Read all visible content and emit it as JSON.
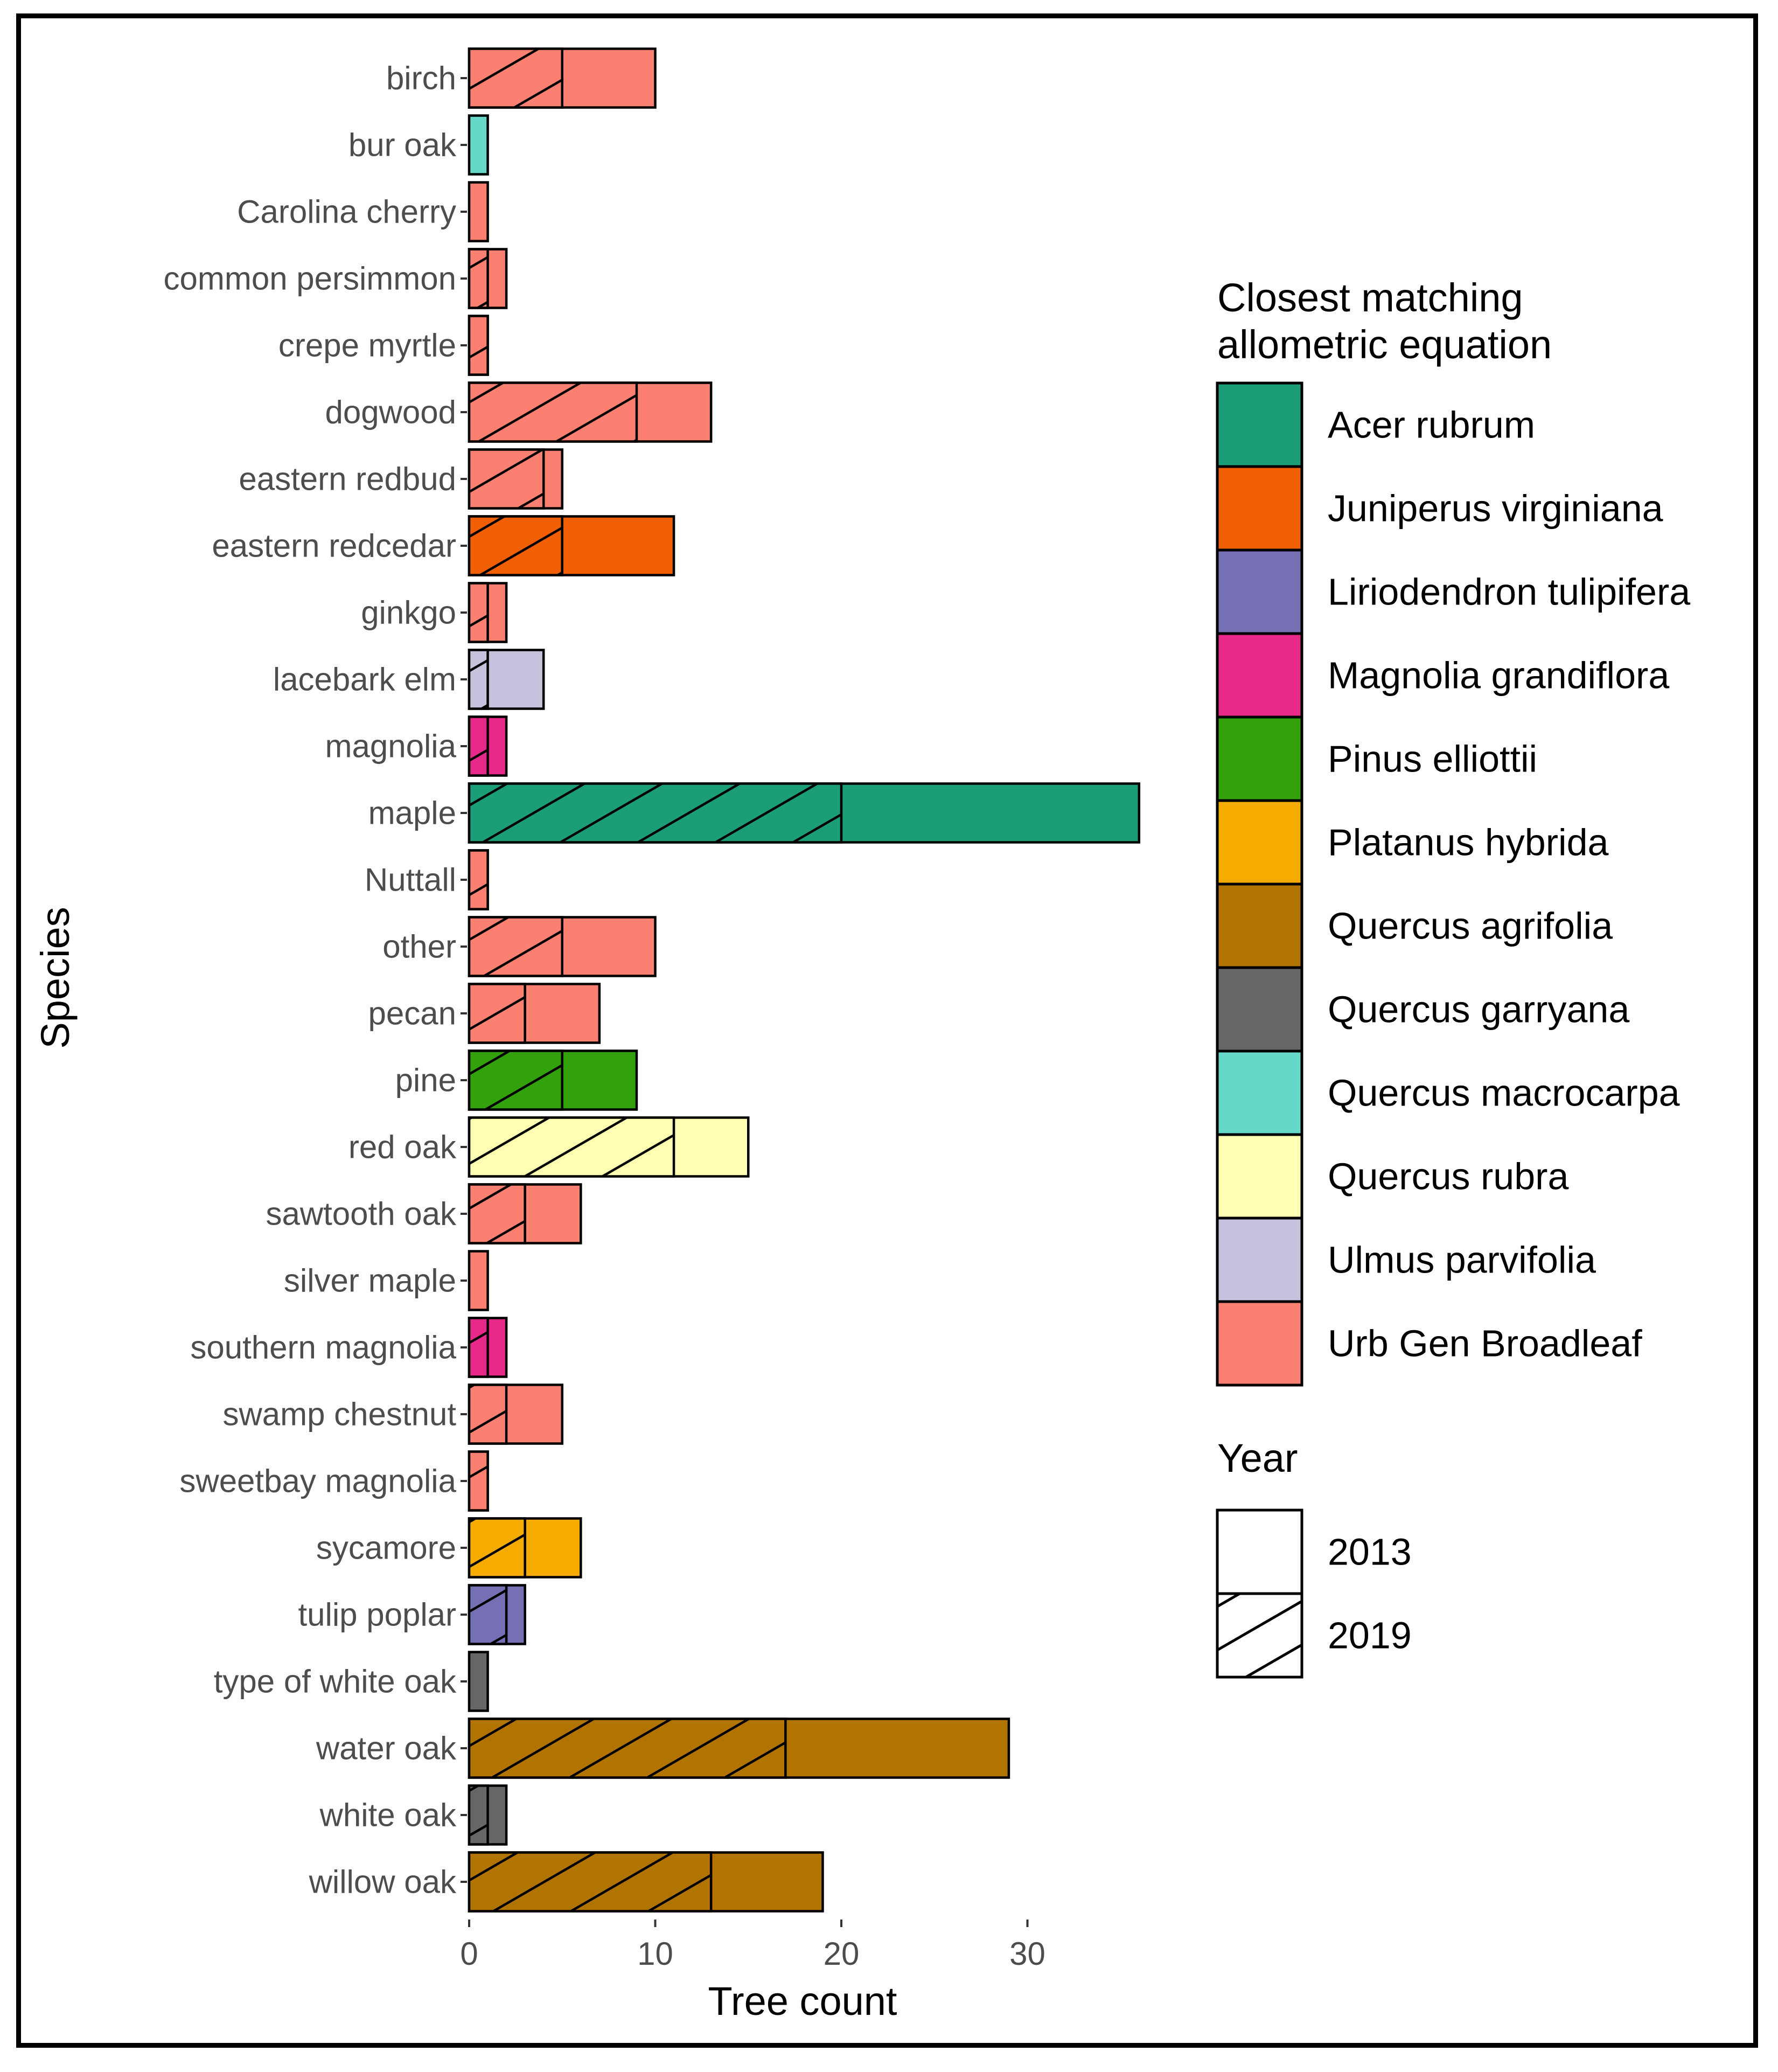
{
  "chart_data": {
    "type": "bar",
    "orientation": "horizontal",
    "stacking": "overlay",
    "xlabel": "Tree count",
    "ylabel": "Species",
    "xlim": [
      0,
      36
    ],
    "xticks": [
      0,
      10,
      20,
      30
    ],
    "grid": false,
    "legend_position": "right",
    "categories": [
      "birch",
      "bur oak",
      "Carolina cherry",
      "common persimmon",
      "crepe myrtle",
      "dogwood",
      "eastern redbud",
      "eastern redcedar",
      "ginkgo",
      "lacebark elm",
      "magnolia",
      "maple",
      "Nuttall",
      "other",
      "pecan",
      "pine",
      "red oak",
      "sawtooth oak",
      "silver maple",
      "southern magnolia",
      "swamp chestnut",
      "sweetbay magnolia",
      "sycamore",
      "tulip poplar",
      "type of white oak",
      "water oak",
      "white oak",
      "willow oak"
    ],
    "equation": [
      "Urb Gen Broadleaf",
      "Quercus macrocarpa",
      "Urb Gen Broadleaf",
      "Urb Gen Broadleaf",
      "Urb Gen Broadleaf",
      "Urb Gen Broadleaf",
      "Urb Gen Broadleaf",
      "Juniperus virginiana",
      "Urb Gen Broadleaf",
      "Ulmus parvifolia",
      "Magnolia grandiflora",
      "Acer rubrum",
      "Urb Gen Broadleaf",
      "Urb Gen Broadleaf",
      "Urb Gen Broadleaf",
      "Pinus elliottii",
      "Quercus rubra",
      "Urb Gen Broadleaf",
      "Urb Gen Broadleaf",
      "Magnolia grandiflora",
      "Urb Gen Broadleaf",
      "Urb Gen Broadleaf",
      "Platanus hybrida",
      "Liriodendron tulipifera",
      "Quercus garryana",
      "Quercus agrifolia",
      "Quercus garryana",
      "Quercus agrifolia"
    ],
    "series": [
      {
        "name": "2013",
        "values": [
          10,
          1,
          1,
          2,
          1,
          13,
          5,
          11,
          2,
          4,
          2,
          36,
          1,
          10,
          7,
          9,
          15,
          6,
          1,
          2,
          5,
          1,
          6,
          3,
          1,
          29,
          2,
          19
        ]
      },
      {
        "name": "2019",
        "values": [
          5,
          0,
          0,
          1,
          1,
          9,
          4,
          5,
          1,
          1,
          1,
          20,
          1,
          5,
          3,
          5,
          11,
          3,
          0,
          1,
          2,
          1,
          3,
          2,
          0,
          17,
          1,
          13
        ]
      }
    ],
    "legend_fill": {
      "title": "Closest matching allometric equation",
      "title_lines": [
        "Closest matching",
        "allometric equation"
      ],
      "entries": [
        {
          "label": "Acer rubrum",
          "color": "#1b9e77"
        },
        {
          "label": "Juniperus virginiana",
          "color": "#f05f04"
        },
        {
          "label": "Liriodendron tulipifera",
          "color": "#7570b3"
        },
        {
          "label": "Magnolia grandiflora",
          "color": "#e7298a"
        },
        {
          "label": "Pinus elliottii",
          "color": "#33a10b"
        },
        {
          "label": "Platanus hybrida",
          "color": "#f5ab00"
        },
        {
          "label": "Quercus agrifolia",
          "color": "#b27400"
        },
        {
          "label": "Quercus garryana",
          "color": "#666666"
        },
        {
          "label": "Quercus macrocarpa",
          "color": "#66d8c9"
        },
        {
          "label": "Quercus rubra",
          "color": "#ffffb3"
        },
        {
          "label": "Ulmus parvifolia",
          "color": "#c5c2de"
        },
        {
          "label": "Urb Gen Broadleaf",
          "color": "#fb8072"
        }
      ]
    },
    "legend_pattern": {
      "title": "Year",
      "entries": [
        {
          "label": "2013",
          "pattern": "none"
        },
        {
          "label": "2019",
          "pattern": "stripe"
        }
      ]
    }
  }
}
